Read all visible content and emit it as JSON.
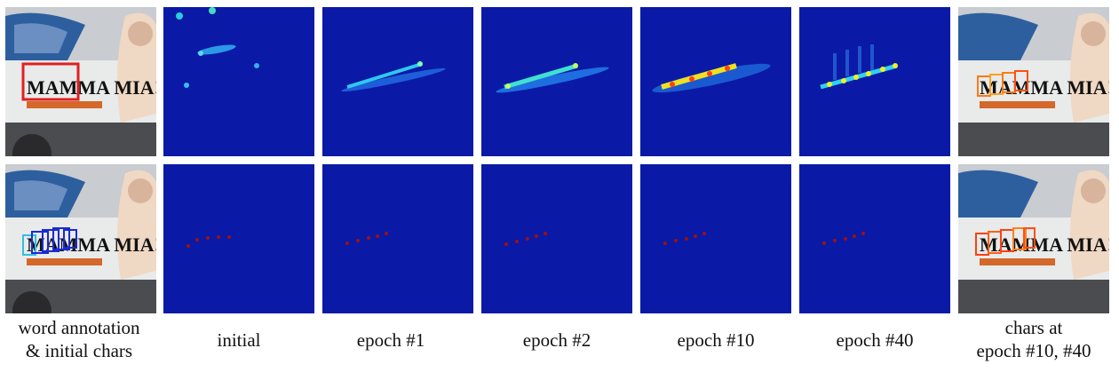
{
  "captions": {
    "word_annotation_line1": "word annotation",
    "word_annotation_line2": "& initial chars",
    "initial": "initial",
    "epoch1": "epoch #1",
    "epoch2": "epoch #2",
    "epoch10": "epoch #10",
    "epoch40": "epoch #40",
    "chars_line1": "chars at",
    "chars_line2": "epoch #10, #40"
  },
  "photo_text": {
    "word": "MAMMA MIA!"
  },
  "colors": {
    "heatmap_background": "#0a1aa6",
    "word_box": "#e02020",
    "initial_char_boxes": "#1a2ad0",
    "refined_char_boxes": "#ff7a10",
    "center_dots": "#a01010"
  }
}
